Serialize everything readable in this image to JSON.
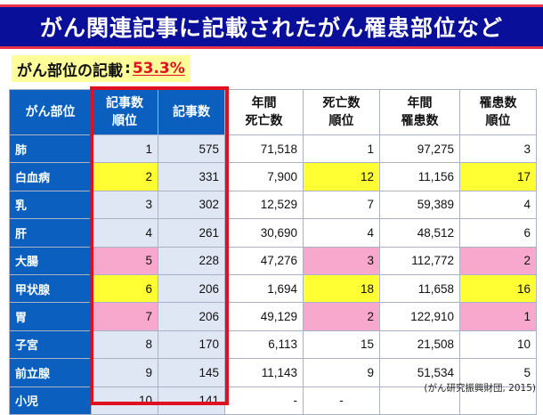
{
  "title": "がん関連記事に記載されたがん罹患部位など",
  "subtitle": {
    "label": "がん部位の記載",
    "separator": ":",
    "percent": "53.3%"
  },
  "table": {
    "headers": {
      "site": "がん部位",
      "article_rank": [
        "記事数",
        "順位"
      ],
      "article_count": "記事数",
      "deaths": [
        "年間",
        "死亡数"
      ],
      "death_rank": [
        "死亡数",
        "順位"
      ],
      "incidence": [
        "年間",
        "罹患数"
      ],
      "incidence_rank": [
        "罹患数",
        "順位"
      ]
    },
    "rows": [
      {
        "site": "肺",
        "article_rank": "1",
        "article_count": "575",
        "deaths": "71,518",
        "death_rank": "1",
        "incidence": "97,275",
        "incidence_rank": "3"
      },
      {
        "site": "白血病",
        "article_rank": "2",
        "article_count": "331",
        "deaths": "7,900",
        "death_rank": "12",
        "incidence": "11,156",
        "incidence_rank": "17"
      },
      {
        "site": "乳",
        "article_rank": "3",
        "article_count": "302",
        "deaths": "12,529",
        "death_rank": "7",
        "incidence": "59,389",
        "incidence_rank": "4"
      },
      {
        "site": "肝",
        "article_rank": "4",
        "article_count": "261",
        "deaths": "30,690",
        "death_rank": "4",
        "incidence": "48,512",
        "incidence_rank": "6"
      },
      {
        "site": "大腸",
        "article_rank": "5",
        "article_count": "228",
        "deaths": "47,276",
        "death_rank": "3",
        "incidence": "112,772",
        "incidence_rank": "2"
      },
      {
        "site": "甲状腺",
        "article_rank": "6",
        "article_count": "206",
        "deaths": "1,694",
        "death_rank": "18",
        "incidence": "11,658",
        "incidence_rank": "16"
      },
      {
        "site": "胃",
        "article_rank": "7",
        "article_count": "206",
        "deaths": "49,129",
        "death_rank": "2",
        "incidence": "122,910",
        "incidence_rank": "1"
      },
      {
        "site": "子宮",
        "article_rank": "8",
        "article_count": "170",
        "deaths": "6,113",
        "death_rank": "15",
        "incidence": "21,508",
        "incidence_rank": "10"
      },
      {
        "site": "前立腺",
        "article_rank": "9",
        "article_count": "145",
        "deaths": "11,143",
        "death_rank": "9",
        "incidence": "51,534",
        "incidence_rank": "5"
      },
      {
        "site": "小児",
        "article_rank": "10",
        "article_count": "141",
        "deaths": "-",
        "death_rank": "-",
        "incidence": "",
        "incidence_rank": ""
      }
    ]
  },
  "source": "(がん研究振興財団, 2015)",
  "colors": {
    "header_blue": "#0a5fbf",
    "title_bg": "#0a0f9a",
    "highlight_yellow": "#ffff33",
    "highlight_pink": "#f7a8cc",
    "frame_red": "#e01020"
  }
}
